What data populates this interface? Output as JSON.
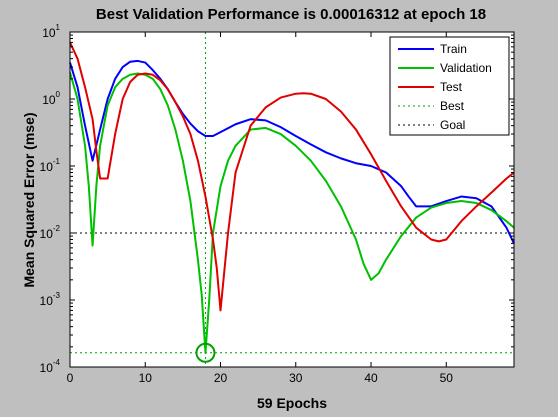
{
  "chart_data": {
    "type": "line",
    "title": "Best Validation Performance is 0.00016312 at epoch 18",
    "xlabel": "59 Epochs",
    "ylabel": "Mean Squared Error  (mse)",
    "xlim": [
      0,
      59
    ],
    "ylim": [
      0.0001,
      10
    ],
    "yscale": "log",
    "grid": false,
    "legend_position": "top-right",
    "x_ticks": [
      "0",
      "10",
      "20",
      "30",
      "40",
      "50"
    ],
    "y_ticks": [
      {
        "base": "10",
        "exp": "1",
        "value": 10
      },
      {
        "base": "10",
        "exp": "0",
        "value": 1
      },
      {
        "base": "10",
        "exp": "-1",
        "value": 0.1
      },
      {
        "base": "10",
        "exp": "-2",
        "value": 0.01
      },
      {
        "base": "10",
        "exp": "-3",
        "value": 0.001
      },
      {
        "base": "10",
        "exp": "-4",
        "value": 0.0001
      }
    ],
    "series": [
      {
        "name": "Train",
        "color": "#0000ff",
        "style": "solid",
        "x": [
          0,
          1,
          2,
          3,
          4,
          5,
          6,
          7,
          8,
          9,
          10,
          11,
          12,
          13,
          14,
          15,
          16,
          17,
          18,
          19,
          20,
          22,
          24,
          26,
          28,
          30,
          32,
          34,
          36,
          38,
          40,
          42,
          44,
          45,
          46,
          48,
          50,
          52,
          54,
          56,
          58,
          59
        ],
        "y": [
          3.5,
          1.5,
          0.4,
          0.12,
          0.35,
          1.0,
          2.0,
          3.0,
          3.6,
          3.7,
          3.5,
          2.7,
          2.0,
          1.4,
          0.9,
          0.6,
          0.43,
          0.33,
          0.28,
          0.28,
          0.32,
          0.42,
          0.5,
          0.48,
          0.38,
          0.28,
          0.21,
          0.16,
          0.13,
          0.11,
          0.1,
          0.08,
          0.05,
          0.035,
          0.025,
          0.025,
          0.03,
          0.035,
          0.033,
          0.025,
          0.012,
          0.007
        ]
      },
      {
        "name": "Validation",
        "color": "#00c000",
        "style": "solid",
        "x": [
          0,
          1,
          2,
          2.5,
          3,
          3.5,
          4,
          5,
          6,
          7,
          8,
          9,
          10,
          11,
          12,
          13,
          14,
          15,
          16,
          17,
          17.5,
          18,
          18.5,
          19,
          20,
          21,
          22,
          24,
          26,
          28,
          30,
          32,
          34,
          36,
          38,
          39,
          40,
          41,
          42,
          44,
          46,
          48,
          50,
          52,
          54,
          56,
          58,
          59
        ],
        "y": [
          2.5,
          1.0,
          0.2,
          0.05,
          0.0065,
          0.05,
          0.2,
          0.8,
          1.5,
          2.0,
          2.3,
          2.4,
          2.3,
          2.0,
          1.4,
          0.8,
          0.35,
          0.12,
          0.03,
          0.004,
          0.0012,
          0.00016312,
          0.001,
          0.01,
          0.05,
          0.12,
          0.2,
          0.35,
          0.37,
          0.3,
          0.2,
          0.12,
          0.06,
          0.025,
          0.008,
          0.0035,
          0.002,
          0.0025,
          0.004,
          0.009,
          0.017,
          0.024,
          0.028,
          0.03,
          0.028,
          0.022,
          0.015,
          0.012
        ]
      },
      {
        "name": "Test",
        "color": "#e00000",
        "style": "solid",
        "x": [
          0,
          1,
          2,
          3,
          3.5,
          4,
          5,
          6,
          7,
          8,
          9,
          10,
          11,
          12,
          13,
          14,
          15,
          16,
          17,
          18,
          19,
          19.5,
          20,
          21,
          22,
          24,
          26,
          28,
          30,
          31,
          32,
          34,
          36,
          38,
          40,
          42,
          44,
          46,
          48,
          49,
          50,
          52,
          54,
          56,
          58,
          59
        ],
        "y": [
          7.0,
          4.0,
          1.5,
          0.5,
          0.17,
          0.065,
          0.065,
          0.3,
          1.0,
          1.8,
          2.3,
          2.4,
          2.3,
          1.9,
          1.4,
          0.9,
          0.55,
          0.3,
          0.12,
          0.035,
          0.008,
          0.003,
          0.0007,
          0.01,
          0.08,
          0.4,
          0.75,
          1.05,
          1.2,
          1.22,
          1.2,
          1.0,
          0.65,
          0.35,
          0.15,
          0.06,
          0.025,
          0.012,
          0.008,
          0.0075,
          0.008,
          0.015,
          0.025,
          0.04,
          0.065,
          0.08
        ]
      },
      {
        "name": "Best",
        "color": "#00a000",
        "style": "dotted"
      },
      {
        "name": "Goal",
        "color": "#000000",
        "style": "dotted"
      }
    ],
    "best": {
      "epoch": 18,
      "value": 0.00016312,
      "color": "#00a000"
    },
    "goal": {
      "value": 0.01,
      "color": "#000000"
    }
  }
}
